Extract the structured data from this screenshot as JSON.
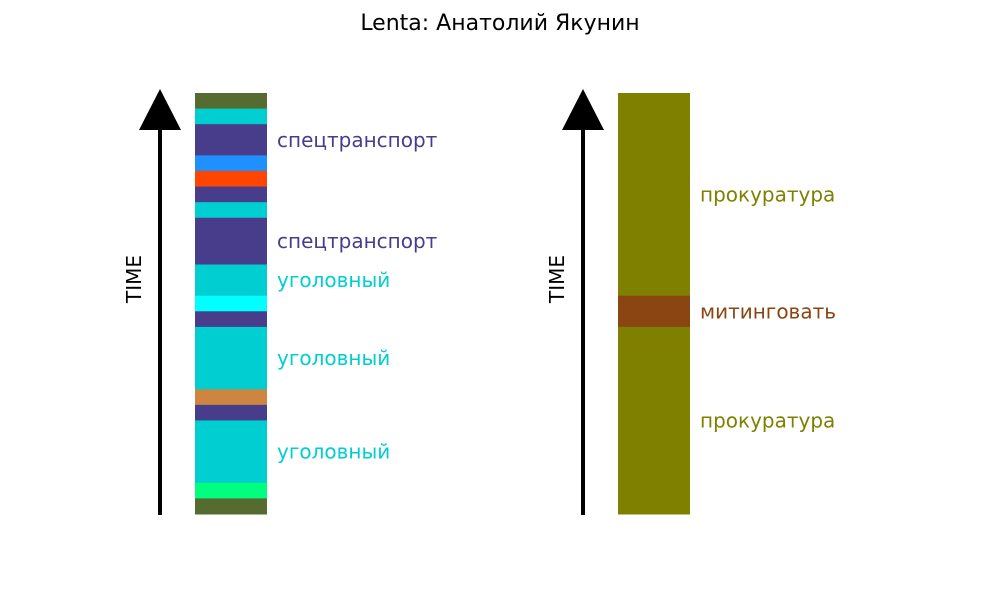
{
  "chart_data": {
    "type": "timeline-bar",
    "title": "Lenta: Анатолий Якунин",
    "panels": [
      {
        "axis_label": "TIME",
        "segments": [
          {
            "length": 1,
            "color": "#556b2f"
          },
          {
            "length": 1,
            "color": "#00ced1"
          },
          {
            "length": 2,
            "color": "#483d8b",
            "label": "спецтранспорт"
          },
          {
            "length": 1,
            "color": "#1e90ff"
          },
          {
            "length": 1,
            "color": "#ff4500"
          },
          {
            "length": 1,
            "color": "#483d8b"
          },
          {
            "length": 1,
            "color": "#00ced1"
          },
          {
            "length": 3,
            "color": "#483d8b",
            "label": "спецтранспорт"
          },
          {
            "length": 2,
            "color": "#00ced1",
            "label": "уголовный"
          },
          {
            "length": 1,
            "color": "#00ffff"
          },
          {
            "length": 1,
            "color": "#483d8b"
          },
          {
            "length": 4,
            "color": "#00ced1",
            "label": "уголовный"
          },
          {
            "length": 1,
            "color": "#cd853f"
          },
          {
            "length": 1,
            "color": "#483d8b"
          },
          {
            "length": 4,
            "color": "#00ced1",
            "label": "уголовный"
          },
          {
            "length": 1,
            "color": "#00ff7f"
          },
          {
            "length": 1,
            "color": "#556b2f"
          }
        ]
      },
      {
        "axis_label": "TIME",
        "segments": [
          {
            "length": 13,
            "color": "#808000",
            "label": "прокуратура"
          },
          {
            "length": 2,
            "color": "#8b4513",
            "label": "митинговать"
          },
          {
            "length": 12,
            "color": "#808000",
            "label": "прокуратура"
          }
        ]
      }
    ]
  }
}
